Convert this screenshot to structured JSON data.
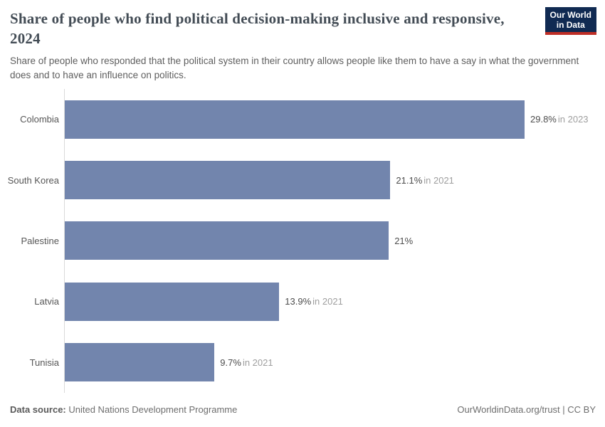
{
  "header": {
    "title": "Share of people who find political decision-making inclusive and responsive, 2024",
    "subtitle": "Share of people who responded that the political system in their country allows people like them to have a say in what the government does and to have an influence on politics.",
    "logo": {
      "line1": "Our World",
      "line2": "in Data"
    }
  },
  "chart_data": {
    "type": "bar",
    "orientation": "horizontal",
    "title": "Share of people who find political decision-making inclusive and responsive, 2024",
    "categories": [
      "Colombia",
      "South Korea",
      "Palestine",
      "Latvia",
      "Tunisia"
    ],
    "values": [
      29.8,
      21.1,
      21,
      13.9,
      9.7
    ],
    "value_labels": [
      "29.8%",
      "21.1%",
      "21%",
      "13.9%",
      "9.7%"
    ],
    "year_notes": [
      "in 2023",
      "in 2021",
      "",
      "in 2021",
      "in 2021"
    ],
    "xlim": [
      0,
      29.8
    ],
    "grid": false,
    "legend": "none",
    "bar_color": "#7285ad"
  },
  "footer": {
    "datasource_label": "Data source:",
    "datasource_value": " United Nations Development Programme",
    "credit": "OurWorldinData.org/trust | CC BY"
  },
  "colors": {
    "bar": "#7285ad",
    "title_text": "#434c55",
    "subtitle_text": "#5e5e5e",
    "label_text": "#565656",
    "value_text": "#4d4d4d",
    "year_text": "#9e9e9e",
    "axis_line": "#d9d9d9",
    "logo_bg": "#102a52",
    "logo_accent": "#bf2e26"
  }
}
